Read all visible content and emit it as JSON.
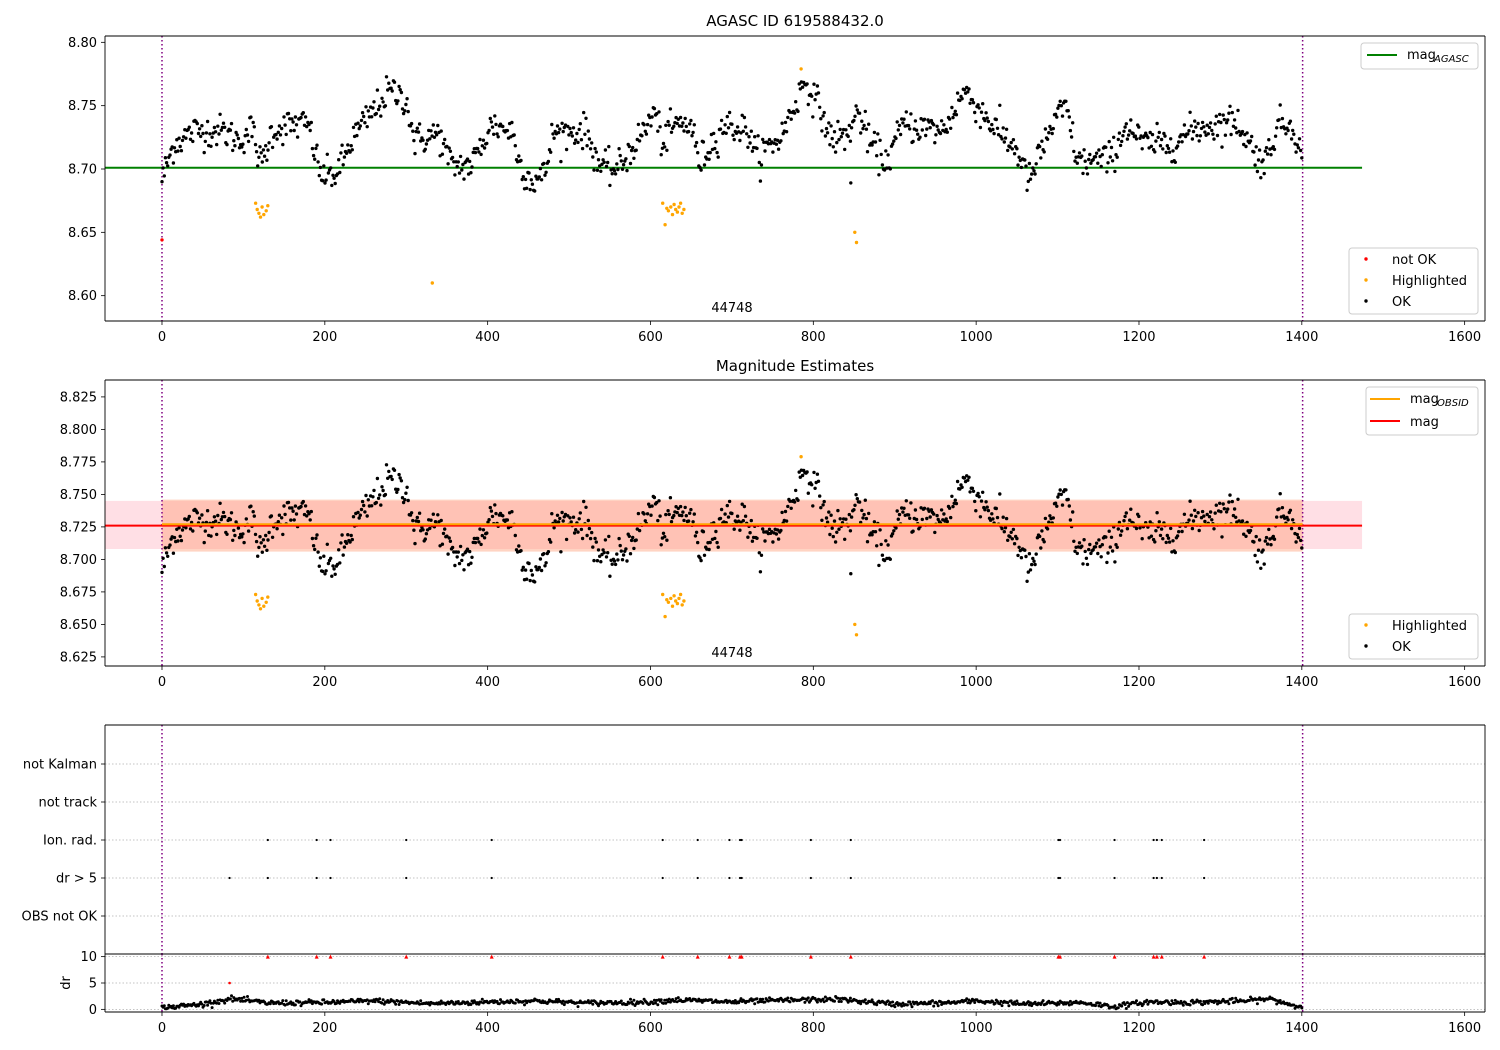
{
  "chart_data": [
    {
      "type": "scatter",
      "title": "AGASC ID 619588432.0",
      "xlim": [
        -70,
        1625
      ],
      "ylim": [
        8.58,
        8.805
      ],
      "xticks": [
        0,
        200,
        400,
        600,
        800,
        1000,
        1200,
        1400,
        1600
      ],
      "yticks": [
        8.6,
        8.65,
        8.7,
        8.75,
        8.8
      ],
      "ytick_labels": [
        "8.60",
        "8.65",
        "8.70",
        "8.75",
        "8.80"
      ],
      "vlines": [
        0,
        1401
      ],
      "hline": {
        "name": "mag_AGASC",
        "y": 8.701,
        "x": [
          -70,
          1474
        ],
        "color": "#008000"
      },
      "annotation": {
        "text": "44748",
        "x": 700,
        "y": 8.583
      },
      "legend_top": {
        "position": "top-right",
        "entries": [
          {
            "label_main": "mag",
            "label_sub": "AGASC",
            "color": "#008000",
            "style": "line"
          }
        ]
      },
      "legend_bottom": {
        "position": "bottom-right",
        "entries": [
          {
            "label": "not OK",
            "color": "#ff0000"
          },
          {
            "label": "Highlighted",
            "color": "#ffa500"
          },
          {
            "label": "OK",
            "color": "#000000"
          }
        ]
      },
      "series": [
        {
          "name": "not OK",
          "color": "#ff0000",
          "points": [
            [
              0,
              8.644
            ]
          ]
        },
        {
          "name": "Highlighted",
          "color": "#ffa500",
          "points": [
            [
              115,
              8.673
            ],
            [
              117,
              8.668
            ],
            [
              119,
              8.665
            ],
            [
              121,
              8.662
            ],
            [
              123,
              8.67
            ],
            [
              125,
              8.664
            ],
            [
              128,
              8.667
            ],
            [
              130,
              8.671
            ],
            [
              332,
              8.61
            ],
            [
              615,
              8.673
            ],
            [
              618,
              8.656
            ],
            [
              620,
              8.669
            ],
            [
              622,
              8.667
            ],
            [
              625,
              8.67
            ],
            [
              627,
              8.664
            ],
            [
              629,
              8.672
            ],
            [
              631,
              8.668
            ],
            [
              633,
              8.666
            ],
            [
              635,
              8.67
            ],
            [
              637,
              8.673
            ],
            [
              639,
              8.665
            ],
            [
              641,
              8.668
            ],
            [
              785,
              8.779
            ],
            [
              851,
              8.65
            ],
            [
              853,
              8.642
            ]
          ]
        },
        {
          "name": "OK",
          "color": "#000000",
          "points": "generated"
        }
      ],
      "ok_trend": [
        [
          0,
          8.692
        ],
        [
          15,
          8.72
        ],
        [
          40,
          8.73
        ],
        [
          75,
          8.73
        ],
        [
          95,
          8.722
        ],
        [
          110,
          8.732
        ],
        [
          122,
          8.703
        ],
        [
          135,
          8.73
        ],
        [
          160,
          8.735
        ],
        [
          180,
          8.735
        ],
        [
          195,
          8.695
        ],
        [
          215,
          8.696
        ],
        [
          235,
          8.725
        ],
        [
          255,
          8.742
        ],
        [
          280,
          8.762
        ],
        [
          300,
          8.755
        ],
        [
          310,
          8.722
        ],
        [
          340,
          8.728
        ],
        [
          355,
          8.703
        ],
        [
          380,
          8.703
        ],
        [
          405,
          8.735
        ],
        [
          430,
          8.73
        ],
        [
          440,
          8.703
        ],
        [
          455,
          8.69
        ],
        [
          470,
          8.695
        ],
        [
          480,
          8.728
        ],
        [
          520,
          8.73
        ],
        [
          540,
          8.7
        ],
        [
          560,
          8.7
        ],
        [
          590,
          8.728
        ],
        [
          605,
          8.745
        ],
        [
          615,
          8.72
        ],
        [
          630,
          8.735
        ],
        [
          650,
          8.735
        ],
        [
          660,
          8.705
        ],
        [
          690,
          8.735
        ],
        [
          720,
          8.73
        ],
        [
          730,
          8.71
        ],
        [
          760,
          8.725
        ],
        [
          790,
          8.77
        ],
        [
          810,
          8.745
        ],
        [
          820,
          8.725
        ],
        [
          840,
          8.725
        ],
        [
          855,
          8.745
        ],
        [
          870,
          8.72
        ],
        [
          890,
          8.705
        ],
        [
          910,
          8.735
        ],
        [
          960,
          8.73
        ],
        [
          985,
          8.762
        ],
        [
          1020,
          8.735
        ],
        [
          1050,
          8.715
        ],
        [
          1065,
          8.69
        ],
        [
          1090,
          8.73
        ],
        [
          1110,
          8.75
        ],
        [
          1125,
          8.705
        ],
        [
          1165,
          8.708
        ],
        [
          1185,
          8.735
        ],
        [
          1205,
          8.72
        ],
        [
          1240,
          8.72
        ],
        [
          1270,
          8.732
        ],
        [
          1320,
          8.738
        ],
        [
          1345,
          8.71
        ],
        [
          1355,
          8.705
        ],
        [
          1370,
          8.735
        ],
        [
          1390,
          8.735
        ],
        [
          1401,
          8.705
        ]
      ]
    },
    {
      "type": "scatter",
      "title": "Magnitude Estimates",
      "xlim": [
        -70,
        1625
      ],
      "ylim": [
        8.618,
        8.838
      ],
      "xticks": [
        0,
        200,
        400,
        600,
        800,
        1000,
        1200,
        1400,
        1600
      ],
      "yticks": [
        8.625,
        8.65,
        8.675,
        8.7,
        8.725,
        8.75,
        8.775,
        8.8,
        8.825
      ],
      "ytick_labels": [
        "8.625",
        "8.650",
        "8.675",
        "8.700",
        "8.725",
        "8.750",
        "8.775",
        "8.800",
        "8.825"
      ],
      "vlines": [
        0,
        1401
      ],
      "hline_mag": {
        "name": "mag",
        "y": 8.726,
        "x": [
          -70,
          1474
        ],
        "color": "#ff0000"
      },
      "hline_obsid": {
        "name": "mag_OBSID",
        "y": 8.727,
        "x": [
          -70,
          1474
        ],
        "color": "#ffa500"
      },
      "band_mag": {
        "y": [
          8.708,
          8.745
        ],
        "color": "#ffc0cb"
      },
      "band_obsid": {
        "y": [
          8.706,
          8.746
        ],
        "x": [
          0,
          1401
        ],
        "color": "#ffa07a"
      },
      "annotation": {
        "text": "44748",
        "x": 700,
        "y": 8.622
      },
      "legend_top": {
        "position": "top-right",
        "entries": [
          {
            "label_main": "mag",
            "label_sub": "OBSID",
            "color": "#ffa500",
            "style": "line"
          },
          {
            "label_main": "mag",
            "label_sub": "",
            "color": "#ff0000",
            "style": "line"
          }
        ]
      },
      "legend_bottom": {
        "position": "bottom-right",
        "entries": [
          {
            "label": "Highlighted",
            "color": "#ffa500"
          },
          {
            "label": "OK",
            "color": "#000000"
          }
        ]
      },
      "series_note": "same points as the AGASC panel"
    },
    {
      "type": "scatter",
      "title": "",
      "xlim": [
        -70,
        1625
      ],
      "categories": [
        "OBS not OK",
        "dr > 5",
        "Ion. rad.",
        "not track",
        "not Kalman"
      ],
      "flag_points": {
        "Ion. rad.": [
          130,
          190,
          207,
          300,
          405,
          615,
          658,
          697,
          710,
          712,
          797,
          846,
          1101,
          1103,
          1170,
          1218,
          1222,
          1228,
          1280
        ],
        "dr > 5": [
          83,
          130,
          190,
          207,
          300,
          405,
          615,
          658,
          697,
          710,
          712,
          797,
          846,
          1101,
          1103,
          1170,
          1218,
          1222,
          1228,
          1280
        ]
      },
      "vlines": [
        0,
        1401
      ]
    },
    {
      "type": "scatter",
      "title": "",
      "ylabel": "dr",
      "xlim": [
        -70,
        1625
      ],
      "ylim": [
        -0.5,
        10.5
      ],
      "xticks": [
        0,
        200,
        400,
        600,
        800,
        1000,
        1200,
        1400,
        1600
      ],
      "yticks": [
        0,
        5,
        10
      ],
      "ytick_labels": [
        "0",
        "5",
        "10"
      ],
      "vlines": [
        0,
        1401
      ],
      "dr_clipped": [
        130,
        190,
        207,
        300,
        405,
        615,
        658,
        697,
        710,
        712,
        797,
        846,
        1101,
        1103,
        1170,
        1218,
        1222,
        1228,
        1280
      ],
      "dr_outlier": [
        [
          83,
          5.0
        ]
      ],
      "dr_trend": [
        [
          0,
          0.3
        ],
        [
          50,
          1.0
        ],
        [
          85,
          2.0
        ],
        [
          130,
          1.2
        ],
        [
          200,
          1.3
        ],
        [
          260,
          1.6
        ],
        [
          330,
          1.1
        ],
        [
          400,
          1.4
        ],
        [
          460,
          1.6
        ],
        [
          520,
          1.2
        ],
        [
          600,
          1.4
        ],
        [
          630,
          1.8
        ],
        [
          700,
          1.4
        ],
        [
          760,
          1.7
        ],
        [
          830,
          1.9
        ],
        [
          900,
          1.0
        ],
        [
          960,
          1.2
        ],
        [
          1000,
          1.6
        ],
        [
          1060,
          1.0
        ],
        [
          1130,
          1.3
        ],
        [
          1170,
          0.5
        ],
        [
          1210,
          1.4
        ],
        [
          1260,
          1.3
        ],
        [
          1330,
          1.6
        ],
        [
          1360,
          2.0
        ],
        [
          1401,
          0.3
        ]
      ]
    }
  ]
}
